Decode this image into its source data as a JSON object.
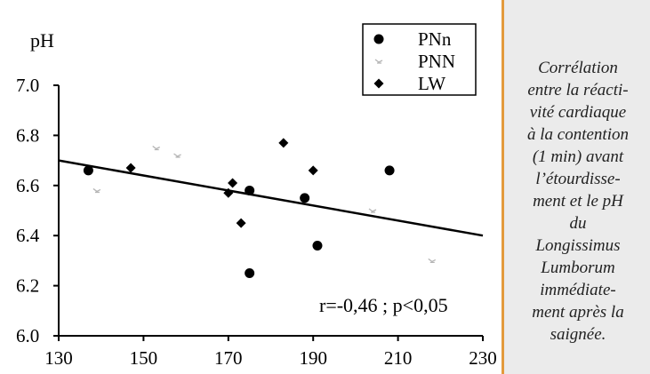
{
  "caption": {
    "lines": [
      "Corrélation",
      "entre la réacti-",
      "vité cardiaque",
      "à la contention",
      "(1 min) avant",
      "l’étourdisse-",
      "ment et le pH",
      "du",
      "Longissimus",
      "Lumborum",
      "immédiate-",
      "ment après la",
      "saignée."
    ]
  },
  "chart_data": {
    "type": "scatter",
    "ylabel": "pH",
    "xlim": [
      130,
      230
    ],
    "ylim": [
      6.0,
      7.0
    ],
    "x_ticks": [
      "130",
      "150",
      "170",
      "190",
      "210",
      "230"
    ],
    "y_ticks": [
      "6.0",
      "6.2",
      "6.4",
      "6.6",
      "6.8",
      "7.0"
    ],
    "legend_position": "top-right",
    "annotation": "r=-0,46 ; p<0,05",
    "regression_line": {
      "x": [
        130,
        230
      ],
      "y": [
        6.7,
        6.4
      ]
    },
    "series": [
      {
        "name": "PNn",
        "marker": "circle",
        "color": "#000000",
        "points": [
          {
            "x": 137,
            "y": 6.66
          },
          {
            "x": 175,
            "y": 6.58
          },
          {
            "x": 175,
            "y": 6.25
          },
          {
            "x": 188,
            "y": 6.55
          },
          {
            "x": 191,
            "y": 6.36
          },
          {
            "x": 208,
            "y": 6.66
          }
        ]
      },
      {
        "name": "PNN",
        "marker": "faint",
        "color": "#b5b5b5",
        "points": [
          {
            "x": 139,
            "y": 6.58
          },
          {
            "x": 153,
            "y": 6.75
          },
          {
            "x": 158,
            "y": 6.72
          },
          {
            "x": 204,
            "y": 6.5
          },
          {
            "x": 218,
            "y": 6.3
          }
        ]
      },
      {
        "name": "LW",
        "marker": "diamond",
        "color": "#000000",
        "points": [
          {
            "x": 147,
            "y": 6.67
          },
          {
            "x": 170,
            "y": 6.57
          },
          {
            "x": 171,
            "y": 6.61
          },
          {
            "x": 173,
            "y": 6.45
          },
          {
            "x": 183,
            "y": 6.77
          },
          {
            "x": 190,
            "y": 6.66
          }
        ]
      }
    ]
  }
}
